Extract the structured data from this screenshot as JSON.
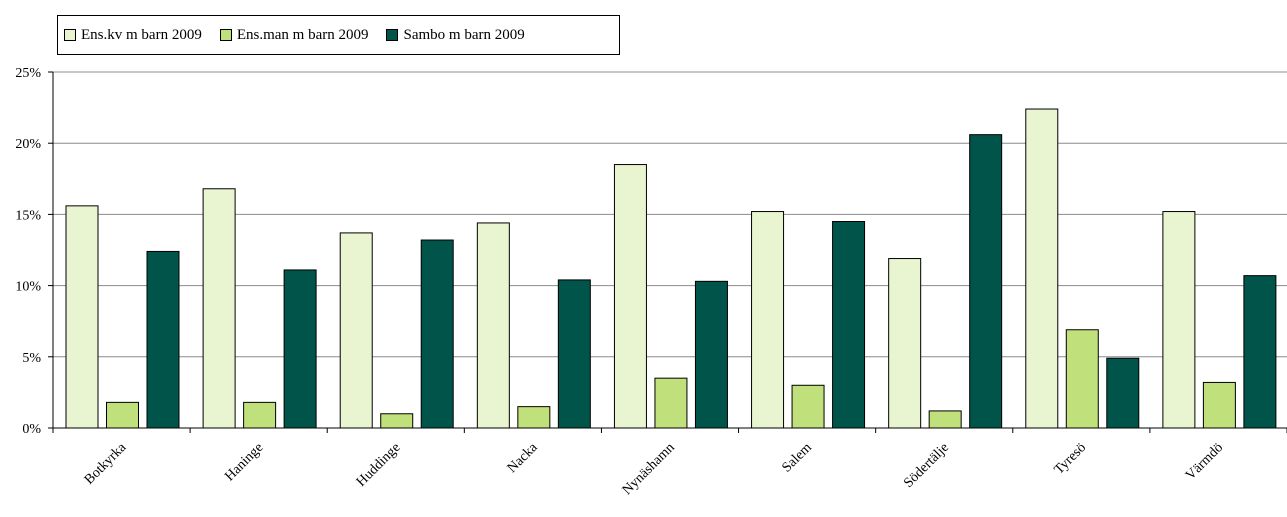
{
  "chart_data": {
    "type": "bar",
    "categories": [
      "Botkyrka",
      "Haninge",
      "Huddinge",
      "Nacka",
      "Nynäshamn",
      "Salem",
      "Södertälje",
      "Tyresö",
      "Värmdö"
    ],
    "series": [
      {
        "name": "Ens.kv m barn 2009",
        "color": "#e8f5d0",
        "values": [
          15.6,
          16.8,
          13.7,
          14.4,
          18.5,
          15.2,
          11.9,
          22.4,
          15.2
        ]
      },
      {
        "name": "Ens.man m barn 2009",
        "color": "#bfe07a",
        "values": [
          1.8,
          1.8,
          1.0,
          1.5,
          3.5,
          3.0,
          1.2,
          6.9,
          3.2
        ]
      },
      {
        "name": "Sambo m barn 2009",
        "color": "#00544a",
        "values": [
          12.4,
          11.1,
          13.2,
          10.4,
          10.3,
          14.5,
          20.6,
          4.9,
          10.7
        ]
      }
    ],
    "ylim": [
      0,
      25
    ],
    "yticks": [
      "0%",
      "5%",
      "10%",
      "15%",
      "20%",
      "25%"
    ],
    "ytick_values": [
      0,
      5,
      10,
      15,
      20,
      25
    ],
    "grid": true,
    "legend_position": "top-left",
    "title": "",
    "xlabel": "",
    "ylabel": ""
  }
}
